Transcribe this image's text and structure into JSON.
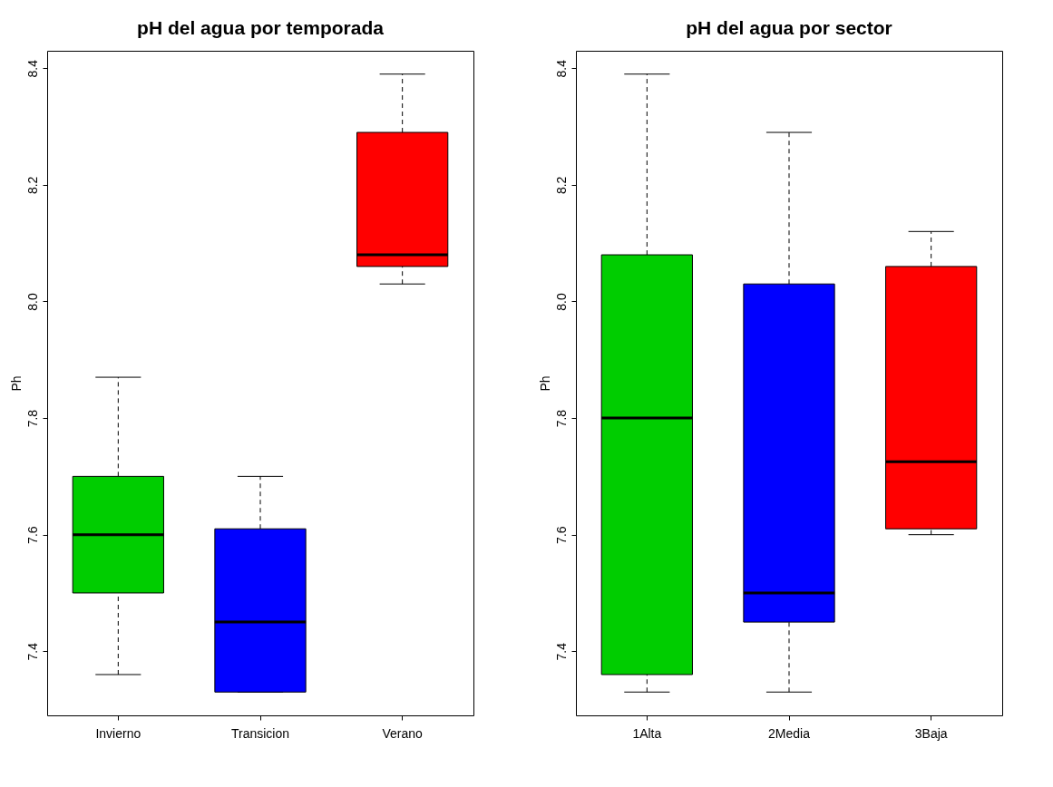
{
  "chart_data": [
    {
      "type": "box",
      "title": "pH del agua por temporada",
      "ylabel": "Ph",
      "categories": [
        "Invierno",
        "Transicion",
        "Verano"
      ],
      "boxes": [
        {
          "low": 7.36,
          "q1": 7.5,
          "median": 7.6,
          "q3": 7.7,
          "high": 7.87
        },
        {
          "low": 7.33,
          "q1": 7.33,
          "median": 7.45,
          "q3": 7.61,
          "high": 7.7
        },
        {
          "low": 8.03,
          "q1": 8.06,
          "median": 8.08,
          "q3": 8.29,
          "high": 8.39
        }
      ],
      "colors": [
        "#00cd00",
        "#0000ff",
        "#ff0000"
      ],
      "ylim": [
        7.29,
        8.43
      ],
      "yticks": [
        7.4,
        7.6,
        7.8,
        {
          "value": 8,
          "label": "8.0"
        },
        8.2,
        8.4
      ],
      "grid": false
    },
    {
      "type": "box",
      "title": "pH del agua por sector",
      "ylabel": "Ph",
      "categories": [
        "1Alta",
        "2Media",
        "3Baja"
      ],
      "boxes": [
        {
          "low": 7.33,
          "q1": 7.36,
          "median": 7.8,
          "q3": 8.08,
          "high": 8.39
        },
        {
          "low": 7.33,
          "q1": 7.45,
          "median": 7.5,
          "q3": 8.03,
          "high": 8.29
        },
        {
          "low": 7.6,
          "q1": 7.61,
          "median": 7.725,
          "q3": 8.06,
          "high": 8.12
        }
      ],
      "colors": [
        "#00cd00",
        "#0000ff",
        "#ff0000"
      ],
      "ylim": [
        7.29,
        8.43
      ],
      "yticks": [
        7.4,
        7.6,
        7.8,
        {
          "value": 8,
          "label": "8.0"
        },
        8.2,
        8.4
      ],
      "grid": false
    }
  ]
}
